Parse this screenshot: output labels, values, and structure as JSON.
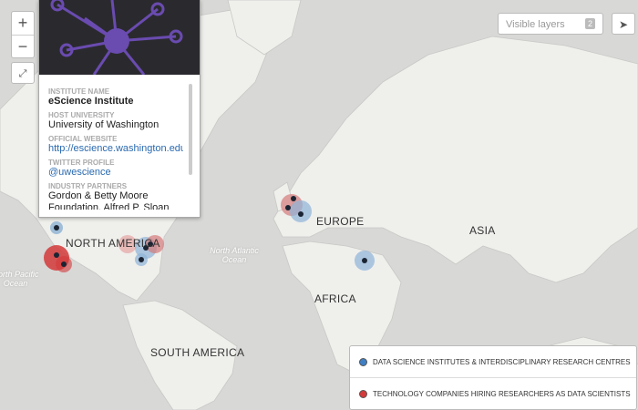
{
  "controls": {
    "zoom_in": "+",
    "zoom_out": "−",
    "layers_placeholder": "Visible layers",
    "layers_count": "2"
  },
  "popup": {
    "fields": [
      {
        "label": "INSTITUTE NAME",
        "value": "eScience Institute"
      },
      {
        "label": "HOST UNIVERSITY",
        "value": "University of Washington"
      },
      {
        "label": "OFFICIAL WEBSITE",
        "value": "http://escience.washington.edu"
      },
      {
        "label": "TWITTER PROFILE",
        "value": "@uwescience"
      },
      {
        "label": "INDUSTRY PARTNERS",
        "value": "Gordon & Betty Moore Foundation, Alfred P. Sloan"
      }
    ]
  },
  "map_labels": {
    "continents": [
      "NORTH AMERICA",
      "EUROPE",
      "ASIA",
      "AFRICA",
      "SOUTH AMERICA"
    ],
    "oceans": [
      "North Atlantic Ocean",
      "North Pacific Ocean"
    ]
  },
  "legend": [
    {
      "label": "DATA SCIENCE INSTITUTES & INTERDISCIPLINARY RESEARCH CENTRES",
      "color": "#3f7fc4"
    },
    {
      "label": "TECHNOLOGY COMPANIES HIRING RESEARCHERS AS DATA SCIENTISTS",
      "color": "#d43a3a"
    }
  ]
}
